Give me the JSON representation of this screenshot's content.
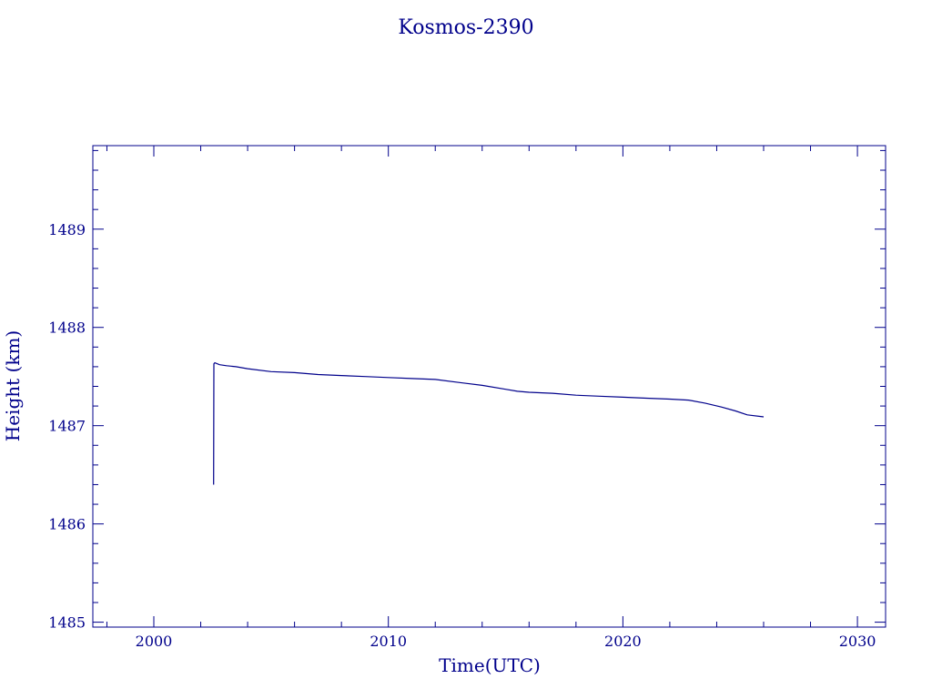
{
  "chart_data": {
    "type": "line",
    "title": "Kosmos-2390",
    "xlabel": "Time(UTC)",
    "ylabel": "Height (km)",
    "xlim": [
      1997.4,
      2031.2
    ],
    "ylim": [
      1484.95,
      1489.85
    ],
    "xticks": [
      2000,
      2010,
      2020,
      2030
    ],
    "yticks": [
      1485,
      1486,
      1487,
      1488,
      1489
    ],
    "grid": false,
    "colors": {
      "axis": "#00008b",
      "series": "#00008b"
    },
    "series": [
      {
        "x": [
          2002.55,
          2002.56,
          2002.6,
          2002.8,
          2003.1,
          2003.5,
          2004.0,
          2005.0,
          2006.0,
          2007.0,
          2008.0,
          2009.0,
          2010.0,
          2011.0,
          2012.0,
          2013.0,
          2014.0,
          2015.0,
          2015.5,
          2016.0,
          2017.0,
          2018.0,
          2019.0,
          2020.0,
          2021.0,
          2022.0,
          2022.8,
          2023.5,
          2024.2,
          2024.8,
          2025.3,
          2026.0
        ],
        "y": [
          1486.4,
          1487.63,
          1487.64,
          1487.62,
          1487.61,
          1487.6,
          1487.58,
          1487.55,
          1487.54,
          1487.52,
          1487.51,
          1487.5,
          1487.49,
          1487.48,
          1487.47,
          1487.44,
          1487.41,
          1487.37,
          1487.35,
          1487.34,
          1487.33,
          1487.31,
          1487.3,
          1487.29,
          1487.28,
          1487.27,
          1487.26,
          1487.23,
          1487.19,
          1487.15,
          1487.11,
          1487.09
        ]
      }
    ]
  }
}
